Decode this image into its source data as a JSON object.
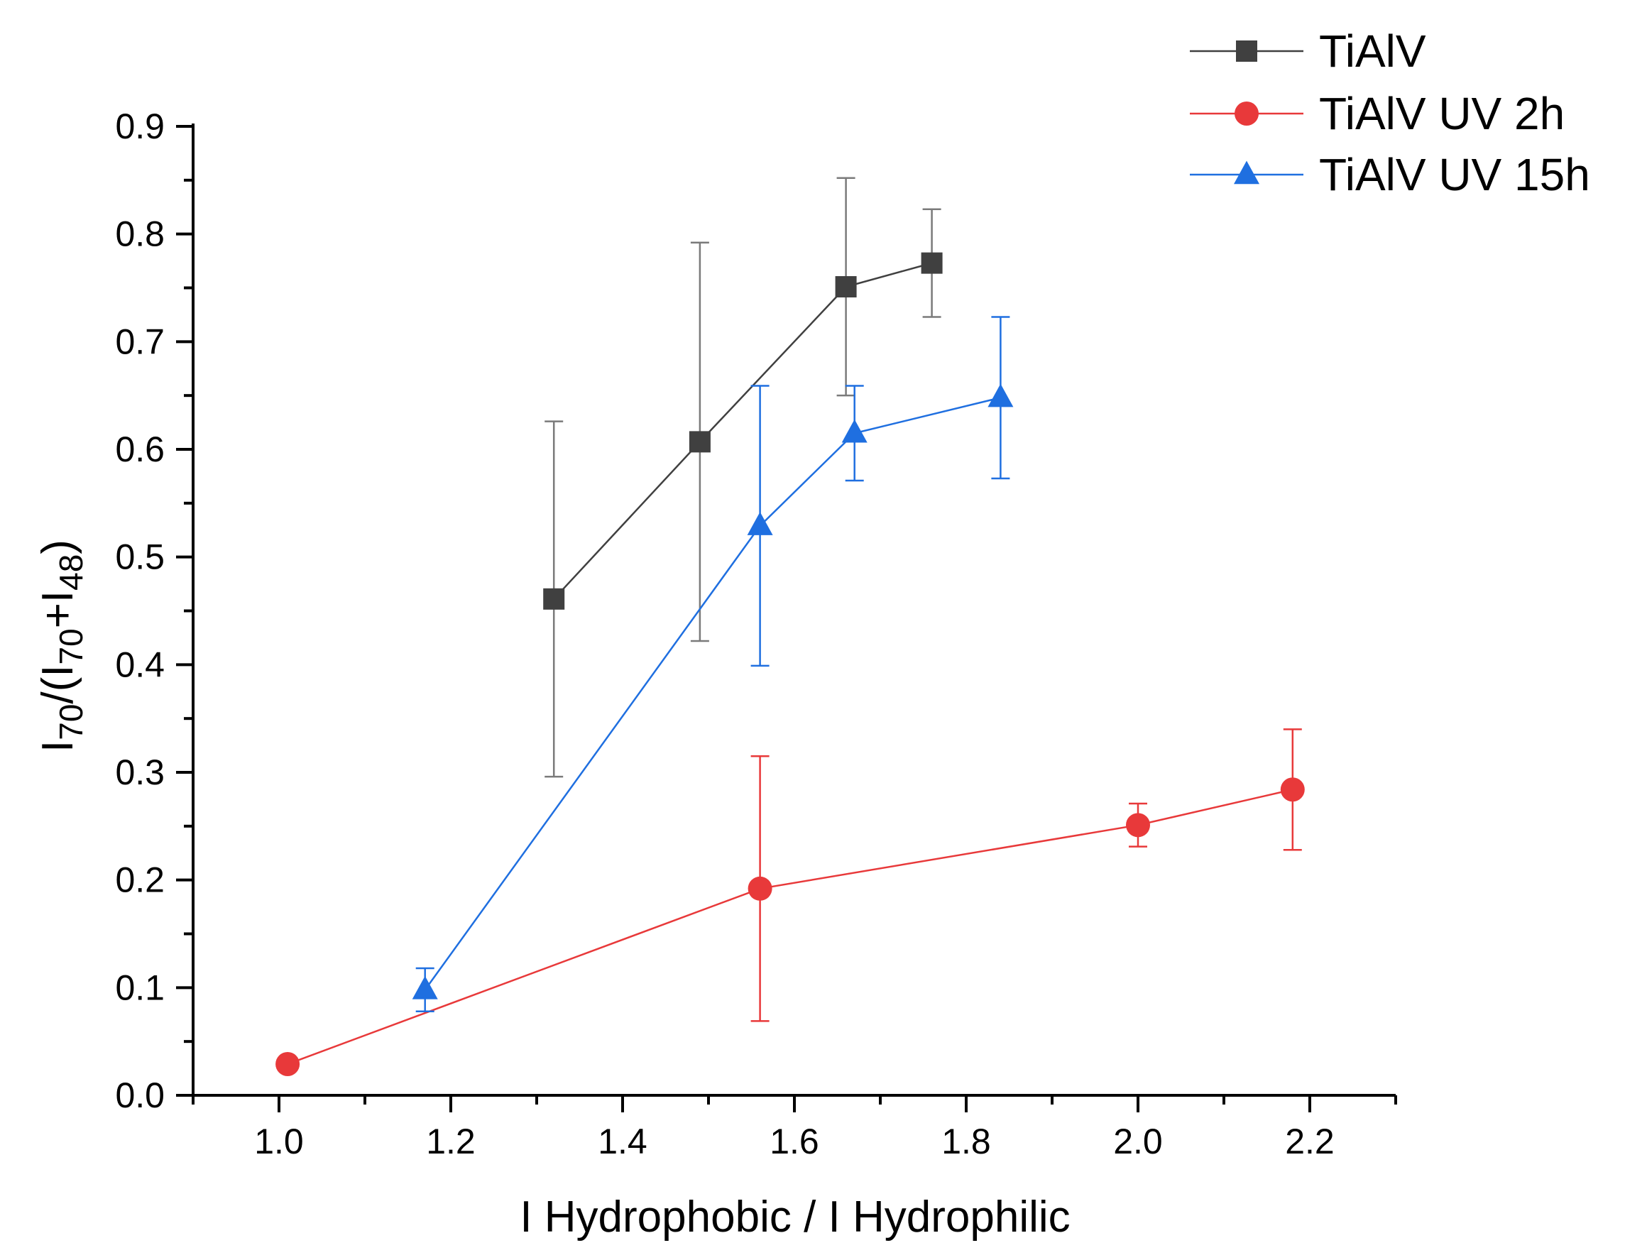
{
  "chart_data": {
    "type": "line",
    "title": "",
    "xlabel": "I Hydrophobic / I Hydrophilic",
    "ylabel": {
      "parts": [
        "I",
        "70",
        "/(I",
        "70",
        "+I",
        "48",
        ")"
      ],
      "subscript_flags": [
        false,
        true,
        false,
        true,
        false,
        true,
        false
      ]
    },
    "xlim": [
      0.9,
      2.3
    ],
    "ylim": [
      0.0,
      0.9
    ],
    "x_ticks": [
      1.0,
      1.2,
      1.4,
      1.6,
      1.8,
      2.0,
      2.2
    ],
    "x_tick_labels": [
      "1.0",
      "1.2",
      "1.4",
      "1.6",
      "1.8",
      "2.0",
      "2.2"
    ],
    "y_ticks": [
      0.0,
      0.1,
      0.2,
      0.3,
      0.4,
      0.5,
      0.6,
      0.7,
      0.8,
      0.9
    ],
    "y_tick_labels": [
      "0.0",
      "0.1",
      "0.2",
      "0.3",
      "0.4",
      "0.5",
      "0.6",
      "0.7",
      "0.8",
      "0.9"
    ],
    "grid": false,
    "legend_position": "top-right",
    "series": [
      {
        "name": "TiAlV",
        "color": "#404040",
        "marker": "square",
        "x": [
          1.32,
          1.49,
          1.66,
          1.76
        ],
        "y": [
          0.461,
          0.607,
          0.751,
          0.773
        ],
        "error": [
          0.165,
          0.185,
          0.101,
          0.05
        ]
      },
      {
        "name": "TiAlV UV 2h",
        "color": "#e8393a",
        "marker": "circle",
        "x": [
          1.01,
          1.56,
          2.0,
          2.18
        ],
        "y": [
          0.029,
          0.192,
          0.251,
          0.284
        ],
        "error": [
          0.0,
          0.123,
          0.02,
          0.056
        ]
      },
      {
        "name": "TiAlV UV 15h",
        "color": "#1f6fe0",
        "marker": "triangle",
        "x": [
          1.17,
          1.56,
          1.67,
          1.84
        ],
        "y": [
          0.098,
          0.529,
          0.615,
          0.648
        ],
        "error": [
          0.02,
          0.13,
          0.044,
          0.075
        ]
      }
    ]
  }
}
